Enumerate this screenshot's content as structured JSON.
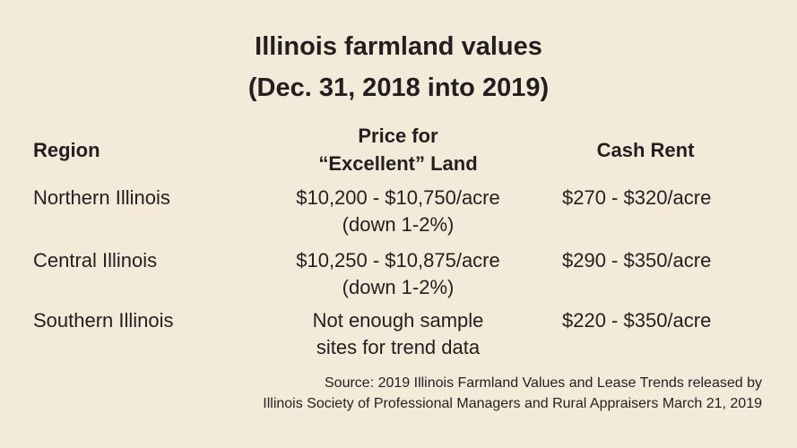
{
  "title": {
    "line1": "Illinois farmland values",
    "line2": "(Dec. 31, 2018 into 2019)"
  },
  "table": {
    "headers": {
      "region": "Region",
      "price_line1": "Price for",
      "price_line2": "“Excellent” Land",
      "rent": "Cash Rent"
    },
    "rows": [
      {
        "region": "Northern Illinois",
        "price_line1": "$10,200 - $10,750/acre",
        "price_line2": "(down 1-2%)",
        "rent": "$270 - $320/acre"
      },
      {
        "region": "Central Illinois",
        "price_line1": "$10,250 - $10,875/acre",
        "price_line2": "(down 1-2%)",
        "rent": "$290 - $350/acre"
      },
      {
        "region": "Southern Illinois",
        "price_line1": "Not enough sample",
        "price_line2": "sites for trend data",
        "rent": "$220 - $350/acre"
      }
    ]
  },
  "source": {
    "line1": "Source: 2019 Illinois Farmland Values and Lease Trends released by",
    "line2": "Illinois Society of Professional Managers and Rural Appraisers March 21, 2019"
  },
  "colors": {
    "background": "#f4ead9",
    "text": "#231f20"
  }
}
